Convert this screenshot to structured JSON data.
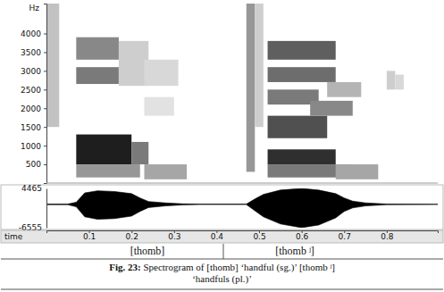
{
  "chart_data": [
    {
      "type": "heatmap",
      "y_label": "Hz",
      "xlim": [
        0,
        0.92
      ],
      "ylim": [
        0,
        4800
      ],
      "yticks": [
        500,
        1000,
        1500,
        2000,
        2500,
        3000,
        3500,
        4000
      ],
      "tick_labels": "y",
      "cells": [
        {
          "t0": 0.0,
          "t1": 0.03,
          "f0": 1500,
          "f1": 4800,
          "level": 0.35
        },
        {
          "t0": 0.07,
          "t1": 0.2,
          "f0": 500,
          "f1": 1300,
          "level": 0.9
        },
        {
          "t0": 0.07,
          "t1": 0.17,
          "f0": 2650,
          "f1": 3100,
          "level": 0.6
        },
        {
          "t0": 0.07,
          "t1": 0.17,
          "f0": 3300,
          "f1": 3900,
          "level": 0.55
        },
        {
          "t0": 0.07,
          "t1": 0.22,
          "f0": 150,
          "f1": 500,
          "level": 0.5
        },
        {
          "t0": 0.17,
          "t1": 0.24,
          "f0": 2600,
          "f1": 3800,
          "level": 0.3
        },
        {
          "t0": 0.2,
          "t1": 0.24,
          "f0": 500,
          "f1": 1100,
          "level": 0.6
        },
        {
          "t0": 0.23,
          "t1": 0.33,
          "f0": 100,
          "f1": 500,
          "level": 0.45
        },
        {
          "t0": 0.23,
          "t1": 0.3,
          "f0": 1800,
          "f1": 2300,
          "level": 0.2
        },
        {
          "t0": 0.23,
          "t1": 0.31,
          "f0": 2600,
          "f1": 3300,
          "level": 0.25
        },
        {
          "t0": 0.47,
          "t1": 0.49,
          "f0": 300,
          "f1": 4800,
          "level": 0.5
        },
        {
          "t0": 0.49,
          "t1": 0.51,
          "f0": 1500,
          "f1": 4800,
          "level": 0.3
        },
        {
          "t0": 0.52,
          "t1": 0.68,
          "f0": 500,
          "f1": 900,
          "level": 0.85
        },
        {
          "t0": 0.52,
          "t1": 0.66,
          "f0": 1200,
          "f1": 1800,
          "level": 0.75
        },
        {
          "t0": 0.52,
          "t1": 0.64,
          "f0": 2100,
          "f1": 2500,
          "level": 0.6
        },
        {
          "t0": 0.52,
          "t1": 0.68,
          "f0": 2700,
          "f1": 3100,
          "level": 0.65
        },
        {
          "t0": 0.52,
          "t1": 0.68,
          "f0": 3300,
          "f1": 3800,
          "level": 0.7
        },
        {
          "t0": 0.52,
          "t1": 0.72,
          "f0": 150,
          "f1": 500,
          "level": 0.6
        },
        {
          "t0": 0.62,
          "t1": 0.72,
          "f0": 1800,
          "f1": 2200,
          "level": 0.55
        },
        {
          "t0": 0.66,
          "t1": 0.74,
          "f0": 2300,
          "f1": 2700,
          "level": 0.4
        },
        {
          "t0": 0.68,
          "t1": 0.78,
          "f0": 100,
          "f1": 500,
          "level": 0.45
        },
        {
          "t0": 0.8,
          "t1": 0.82,
          "f0": 2500,
          "f1": 3000,
          "level": 0.3
        },
        {
          "t0": 0.82,
          "t1": 0.84,
          "f0": 2500,
          "f1": 2900,
          "level": 0.25
        }
      ]
    },
    {
      "type": "area",
      "x_label": "time",
      "xlim": [
        0,
        0.92
      ],
      "xticks": [
        0.1,
        0.2,
        0.3,
        0.4,
        0.5,
        0.6,
        0.7,
        0.8
      ],
      "ylim": [
        -6555,
        4465
      ],
      "yticks": [
        4465,
        -6555
      ],
      "color": "#000000",
      "x": [
        0,
        0.05,
        0.07,
        0.09,
        0.12,
        0.16,
        0.2,
        0.22,
        0.24,
        0.28,
        0.32,
        0.36,
        0.47,
        0.49,
        0.51,
        0.55,
        0.6,
        0.64,
        0.68,
        0.7,
        0.72,
        0.75,
        0.8,
        0.92
      ],
      "upper": [
        80,
        80,
        600,
        3200,
        3800,
        3600,
        3000,
        1800,
        800,
        400,
        150,
        60,
        60,
        1500,
        2800,
        4000,
        4465,
        4000,
        3000,
        1800,
        900,
        400,
        100,
        50
      ],
      "lower": [
        -80,
        -80,
        -700,
        -3500,
        -4200,
        -4000,
        -3300,
        -2000,
        -900,
        -450,
        -150,
        -60,
        -60,
        -1800,
        -3500,
        -5500,
        -6555,
        -5800,
        -3800,
        -2000,
        -1000,
        -450,
        -100,
        -50
      ]
    }
  ],
  "caption": {
    "labels": [
      "[thomb]",
      "[thomb ʲ]"
    ],
    "label": "Fig. 23:",
    "lines": [
      " Spectrogram of [thomb] ‘handful (sg.)’ [thomb ʲ]",
      "‘handfuls (pl.)’"
    ]
  }
}
